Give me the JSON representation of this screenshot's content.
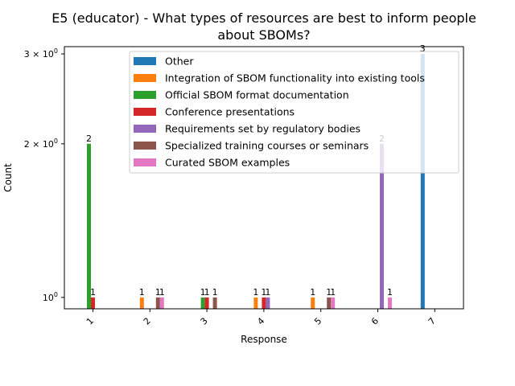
{
  "chart_data": {
    "type": "bar",
    "title_lines": [
      "E5 (educator) - What types of resources are best to inform people",
      "about SBOMs?"
    ],
    "xlabel": "Response",
    "ylabel": "Count",
    "yscale": "log",
    "ylim": [
      0.95,
      3.1
    ],
    "yticks": [
      {
        "value": 1,
        "base": "10",
        "exp": "0"
      },
      {
        "value": 2,
        "base": "2 × 10",
        "exp": "0"
      },
      {
        "value": 3,
        "base": "3 × 10",
        "exp": "0"
      }
    ],
    "categories": [
      "1",
      "2",
      "3",
      "4",
      "5",
      "6",
      "7"
    ],
    "grid": false,
    "legend_position": "top-right",
    "series": [
      {
        "name": "Other",
        "color": "#1f77b4",
        "values": [
          null,
          null,
          null,
          null,
          null,
          null,
          3
        ]
      },
      {
        "name": "Integration of SBOM functionality into existing tools",
        "color": "#ff7f0e",
        "values": [
          null,
          1,
          null,
          1,
          1,
          null,
          null
        ]
      },
      {
        "name": "Official SBOM format documentation",
        "color": "#2ca02c",
        "values": [
          2,
          null,
          1,
          null,
          null,
          null,
          null
        ]
      },
      {
        "name": "Conference presentations",
        "color": "#d62728",
        "values": [
          1,
          null,
          1,
          1,
          null,
          null,
          null
        ]
      },
      {
        "name": "Requirements set by regulatory bodies",
        "color": "#9467bd",
        "values": [
          null,
          null,
          null,
          1,
          null,
          2,
          null
        ]
      },
      {
        "name": "Specialized training courses or seminars",
        "color": "#8c564b",
        "values": [
          null,
          1,
          1,
          null,
          1,
          null,
          null
        ]
      },
      {
        "name": "Curated SBOM examples",
        "color": "#e377c2",
        "values": [
          null,
          1,
          null,
          null,
          1,
          1,
          null
        ]
      }
    ]
  }
}
